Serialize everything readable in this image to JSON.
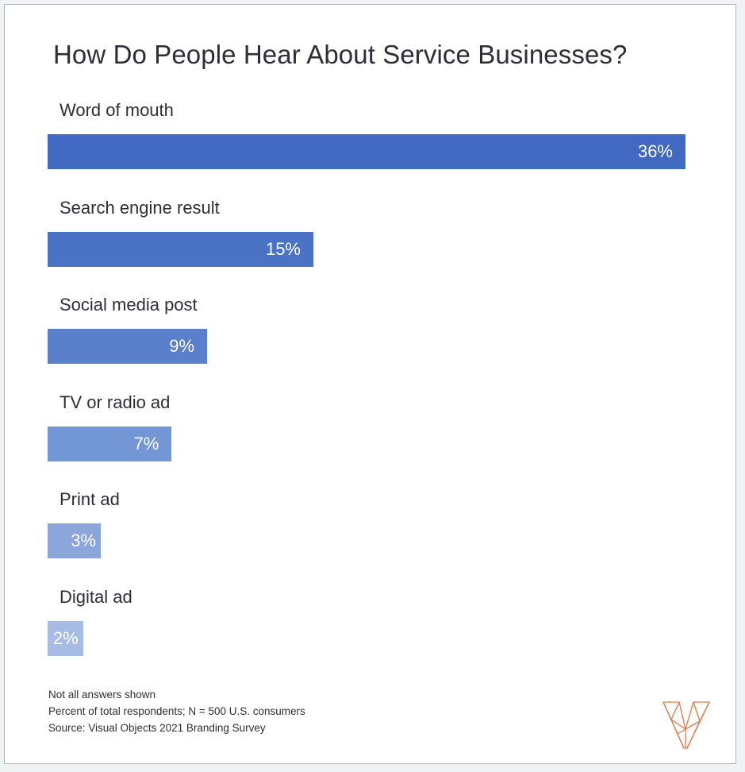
{
  "title": "How Do People Hear About Service Businesses?",
  "colors": {
    "border": "#e8a585",
    "logo": "#e07a4a",
    "bar_shades": [
      "#4169c1",
      "#4a73c6",
      "#5a80cb",
      "#7396d4",
      "#8aa6db",
      "#a6bce4"
    ]
  },
  "logo_icon": "geometric-v-logo",
  "notes": [
    "Not all answers shown",
    "Percent of total respondents; N = 500 U.S. consumers",
    "Source: Visual Objects 2021 Branding Survey"
  ],
  "chart_data": {
    "type": "bar",
    "orientation": "horizontal",
    "title": "How Do People Hear About Service Businesses?",
    "unit": "%",
    "categories": [
      "Word of mouth",
      "Search engine result",
      "Social media post",
      "TV or radio ad",
      "Print ad",
      "Digital ad"
    ],
    "values": [
      36,
      15,
      9,
      7,
      3,
      2
    ],
    "value_labels": [
      "36%",
      "15%",
      "9%",
      "7%",
      "3%",
      "2%"
    ],
    "xlim": [
      0,
      36
    ],
    "grid": false,
    "legend": "none"
  }
}
